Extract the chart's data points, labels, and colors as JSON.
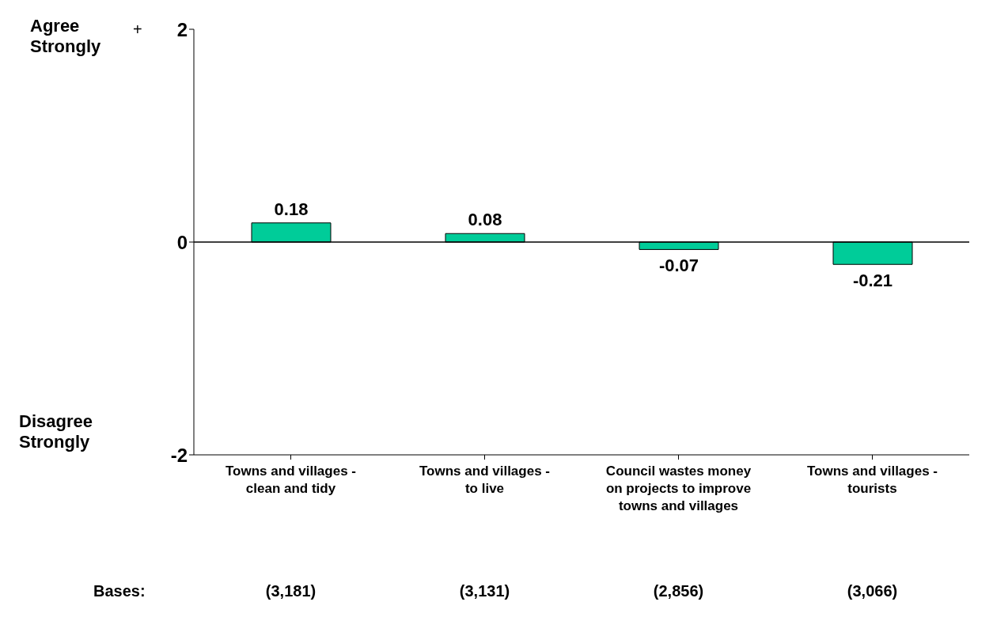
{
  "chart_data": {
    "type": "bar",
    "categories": [
      "Towns and villages - clean and tidy",
      "Towns and villages - to live",
      "Council wastes money on projects to improve towns and villages",
      "Towns and villages - tourists"
    ],
    "values": [
      0.18,
      0.08,
      -0.07,
      -0.21
    ],
    "color": "#00cc99",
    "ylim": [
      -2,
      2
    ],
    "yticks": [
      -2,
      0,
      2
    ],
    "grid": false,
    "data_labels": true,
    "ref_lines": [
      {
        "axis": "y",
        "value": 0
      }
    ],
    "annotations": [
      "Agree Strongly",
      "+",
      "Disagree Strongly",
      "Bases:",
      "(3,181)",
      "(3,131)",
      "(2,856)",
      "(3,066)"
    ]
  }
}
